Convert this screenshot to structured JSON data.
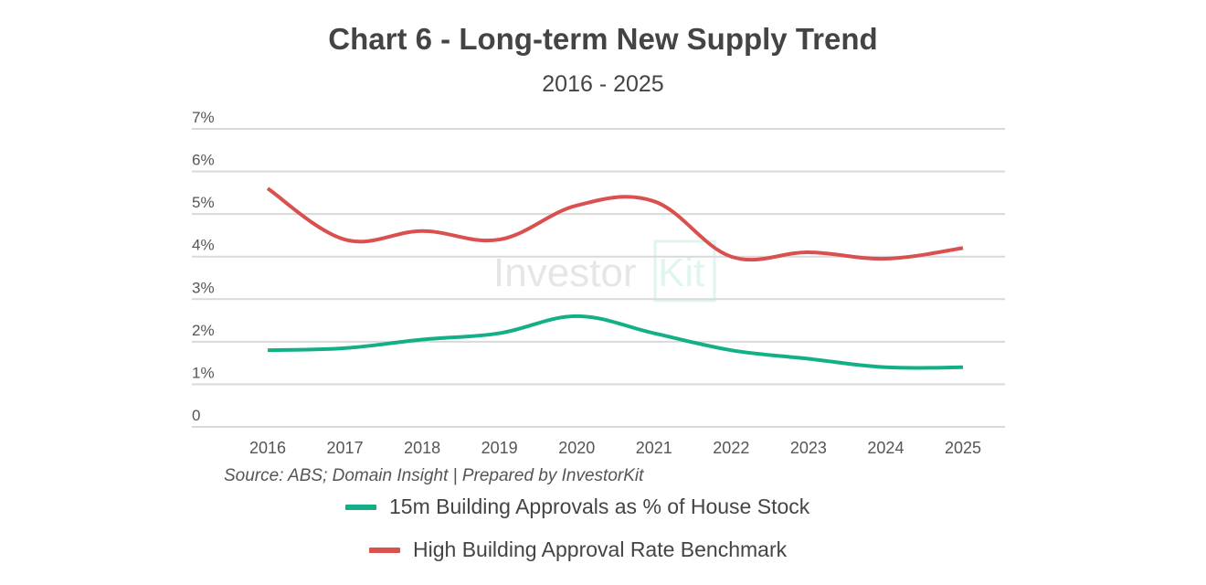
{
  "chart_data": {
    "type": "line",
    "title": "Chart 6 - Long-term New Supply Trend",
    "subtitle": "2016 - 2025",
    "xlabel": "",
    "ylabel": "",
    "categories": [
      "2016",
      "2017",
      "2018",
      "2019",
      "2020",
      "2021",
      "2022",
      "2023",
      "2024",
      "2025"
    ],
    "y_ticks": [
      "0",
      "1%",
      "2%",
      "3%",
      "4%",
      "5%",
      "6%",
      "7%"
    ],
    "ylim": [
      0,
      7
    ],
    "grid": true,
    "legend_position": "bottom",
    "series": [
      {
        "name": "15m Building Approvals as % of House Stock",
        "color": "#13b088",
        "values": [
          1.8,
          1.85,
          2.05,
          2.2,
          2.6,
          2.2,
          1.8,
          1.6,
          1.4,
          1.4
        ]
      },
      {
        "name": "High Building Approval Rate Benchmark",
        "color": "#d9504f",
        "values": [
          5.6,
          4.4,
          4.6,
          4.4,
          5.2,
          5.3,
          4.0,
          4.1,
          3.95,
          4.2
        ]
      }
    ],
    "source": "Source: ABS; Domain Insight | Prepared by InvestorKit",
    "watermark": "Investor Kit"
  }
}
